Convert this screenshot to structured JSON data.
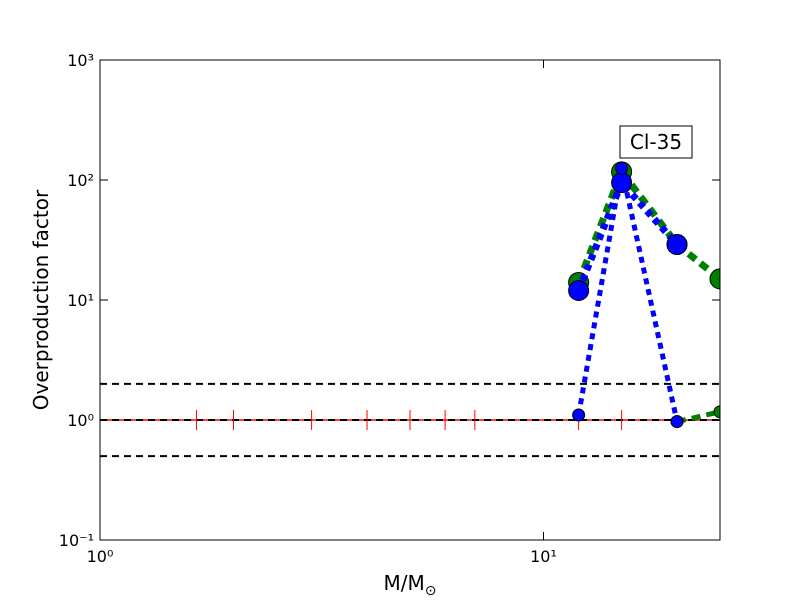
{
  "chart_data": {
    "type": "line",
    "log_x": true,
    "log_y": true,
    "xlabel": "M/M",
    "xlabel_sub": "⊙",
    "ylabel": "Overproduction factor",
    "annotation": "Cl-35",
    "xlim": [
      1,
      25
    ],
    "ylim": [
      0.1,
      1000
    ],
    "xticks": [
      {
        "value": 1,
        "label": "10⁰"
      },
      {
        "value": 10,
        "label": "10¹"
      }
    ],
    "yticks": [
      {
        "value": 0.1,
        "label": "10⁻¹"
      },
      {
        "value": 1,
        "label": "10⁰"
      },
      {
        "value": 10,
        "label": "10¹"
      },
      {
        "value": 100,
        "label": "10²"
      },
      {
        "value": 1000,
        "label": "10³"
      }
    ],
    "hlines": [
      {
        "value": 1,
        "color": "#ff0000",
        "style": "solid"
      },
      {
        "value": 2,
        "color": "#000000",
        "style": "dashed"
      },
      {
        "value": 1,
        "color": "#000000",
        "style": "dashed"
      },
      {
        "value": 0.5,
        "color": "#000000",
        "style": "dashed"
      }
    ],
    "series": [
      {
        "color": "#ff0000",
        "marker": "tick",
        "style": "none",
        "x": [
          1.65,
          2,
          3,
          4,
          5,
          6,
          7,
          12,
          15
        ],
        "values": [
          1,
          1,
          1,
          1,
          1,
          1,
          1,
          1,
          1
        ]
      },
      {
        "color": "#008000",
        "marker": "circle",
        "marker_size": 10,
        "style": "dashed",
        "x": [
          12,
          15,
          20,
          25
        ],
        "values": [
          14,
          117,
          29,
          15
        ]
      },
      {
        "color": "#008000",
        "marker": "circle",
        "marker_size": 6,
        "style": "dashed",
        "x": [
          20,
          25
        ],
        "values": [
          0.97,
          1.17
        ]
      },
      {
        "color": "#0000ff",
        "marker": "circle",
        "marker_size": 10,
        "style": "dotted",
        "x": [
          12,
          15,
          20
        ],
        "values": [
          12,
          95,
          29
        ]
      },
      {
        "color": "#0000ff",
        "marker": "circle",
        "marker_size": 6,
        "style": "dotted",
        "x": [
          12,
          15,
          20
        ],
        "values": [
          1.1,
          125,
          0.97
        ]
      }
    ]
  }
}
